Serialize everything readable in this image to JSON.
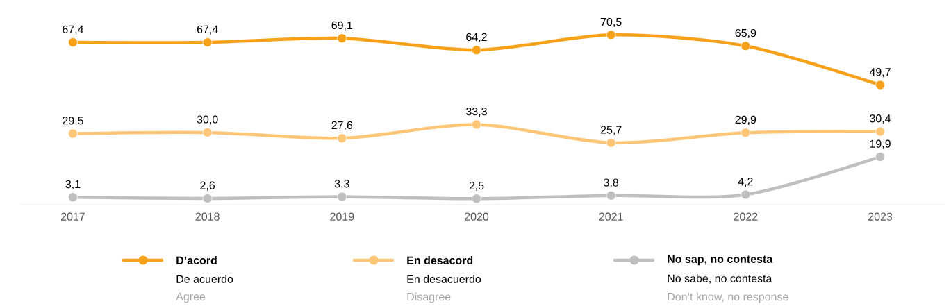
{
  "chart_data": {
    "type": "line",
    "categories": [
      "2017",
      "2018",
      "2019",
      "2020",
      "2021",
      "2022",
      "2023"
    ],
    "marker": "circle",
    "line_style": "solid",
    "legend": "bottom",
    "series": [
      {
        "name": "D’acord",
        "color": "#f7a11a",
        "values": [
          67.4,
          67.4,
          69.1,
          64.2,
          70.5,
          65.9,
          49.7
        ],
        "value_labels": [
          "67,4",
          "67,4",
          "69,1",
          "64,2",
          "70,5",
          "65,9",
          "49,7"
        ]
      },
      {
        "name": "En desacord",
        "color": "#fdc677",
        "values": [
          29.5,
          30.0,
          27.6,
          33.3,
          25.7,
          29.9,
          30.4
        ],
        "value_labels": [
          "29,5",
          "30,0",
          "27,6",
          "33,3",
          "25,7",
          "29,9",
          "30,4"
        ]
      },
      {
        "name": "No sap, no contesta",
        "color": "#bfbfbf",
        "values": [
          3.1,
          2.6,
          3.3,
          2.5,
          3.8,
          4.2,
          19.9
        ],
        "value_labels": [
          "3,1",
          "2,6",
          "3,3",
          "2,5",
          "3,8",
          "4,2",
          "19,9"
        ]
      }
    ],
    "annotations": [
      "De acuerdo",
      "Agree",
      "En desacuerdo",
      "Disagree",
      "No sabe, no contesta",
      "Don’t know, no response"
    ]
  }
}
